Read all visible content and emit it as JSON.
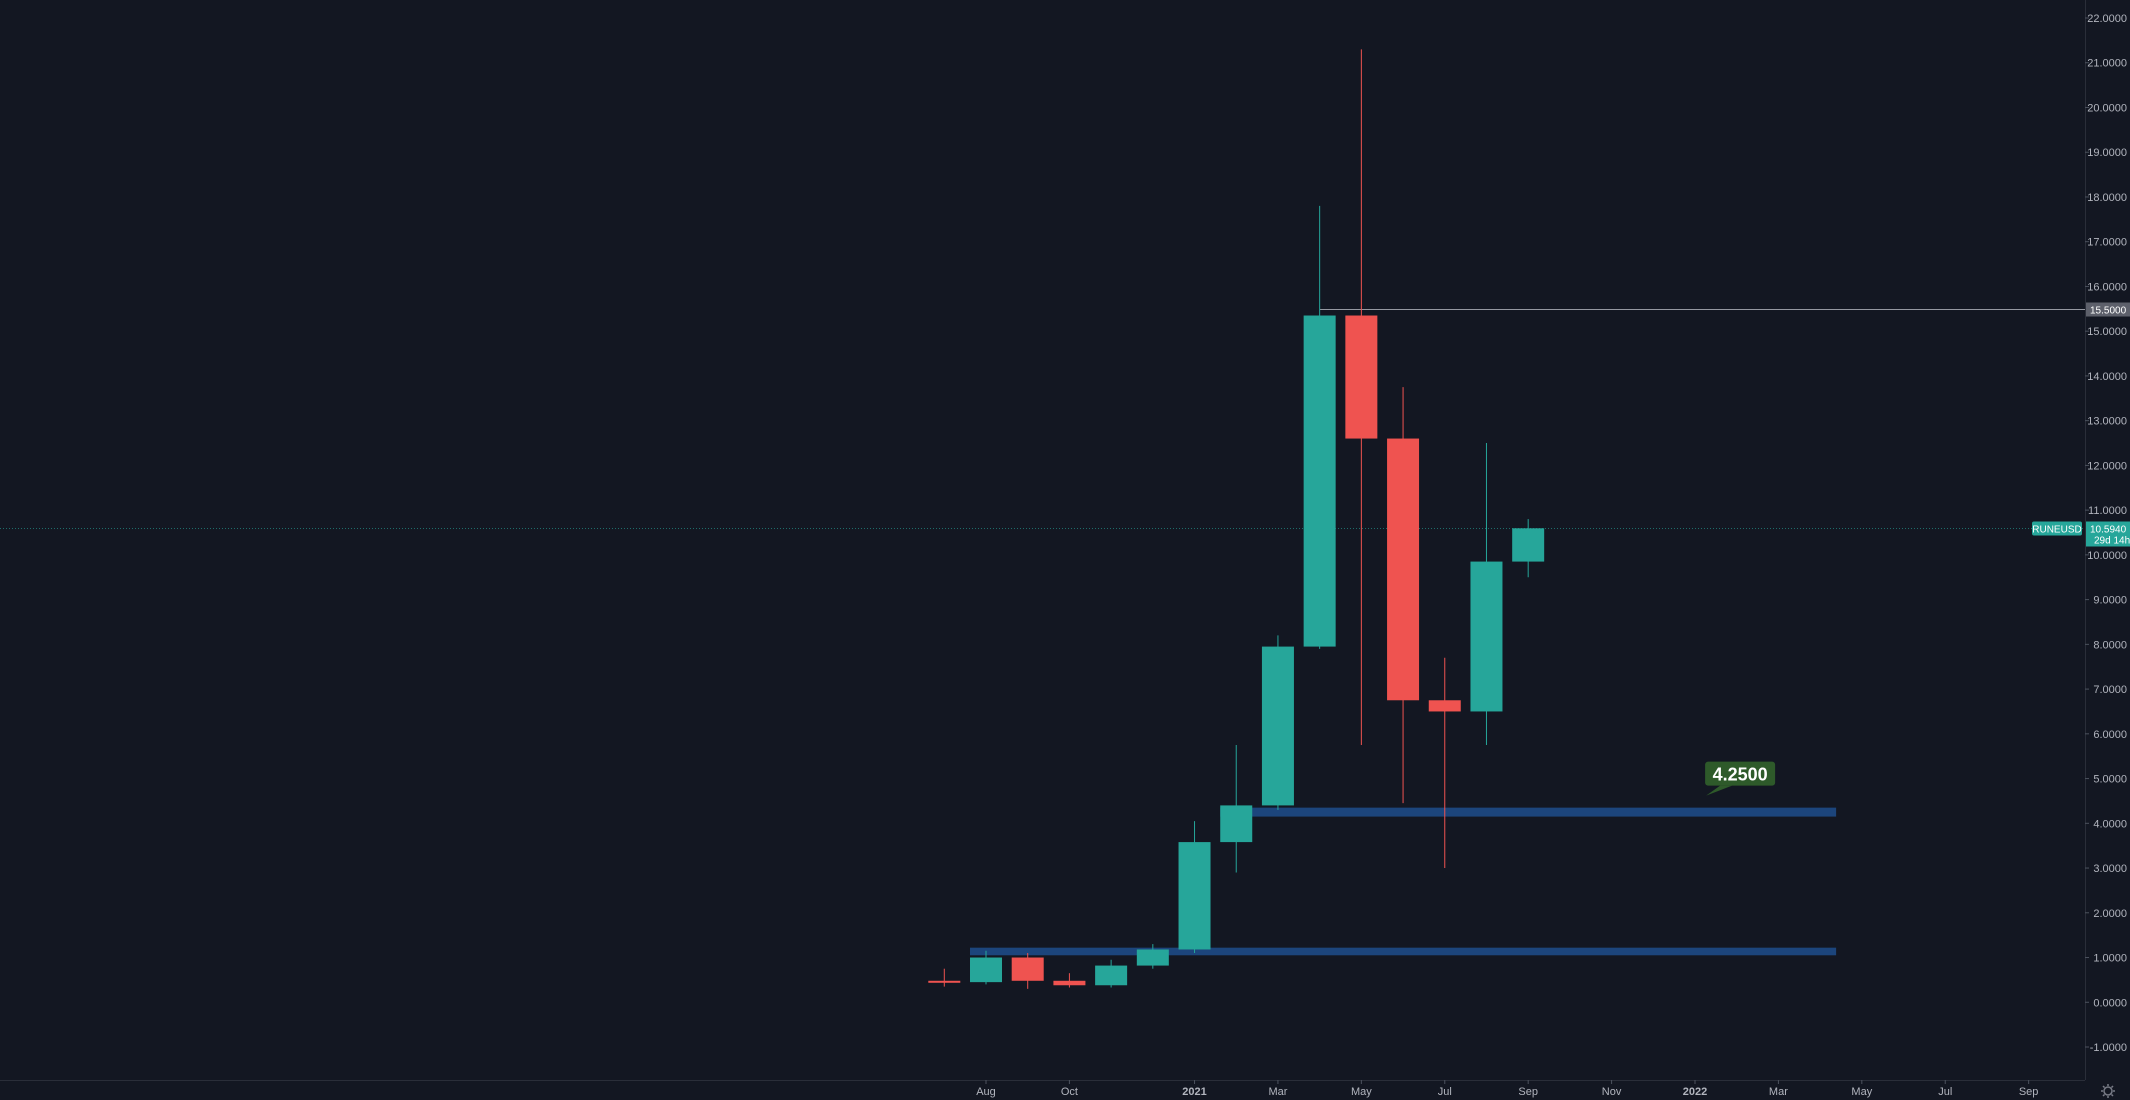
{
  "chart_data": {
    "type": "candlestick",
    "symbol": "RUNEUSD",
    "last_price": "10.5940",
    "countdown": "29d 14h",
    "ref_line_label": "15.5000",
    "ref_line_value": 15.5,
    "ylim": [
      -1.5,
      22.3
    ],
    "y_ticks": [
      "22.0000",
      "21.0000",
      "20.0000",
      "19.0000",
      "18.0000",
      "17.0000",
      "16.0000",
      "15.0000",
      "14.0000",
      "13.0000",
      "12.0000",
      "11.0000",
      "10.0000",
      "9.0000",
      "8.0000",
      "7.0000",
      "6.0000",
      "5.0000",
      "4.0000",
      "3.0000",
      "2.0000",
      "1.0000",
      "0.0000",
      "-1.0000"
    ],
    "x_range": [
      "2020-06",
      "2022-10"
    ],
    "x_ticks": [
      {
        "label": "Aug",
        "date": "2020-08",
        "major": false
      },
      {
        "label": "Oct",
        "date": "2020-10",
        "major": false
      },
      {
        "label": "2021",
        "date": "2021-01",
        "major": true
      },
      {
        "label": "Mar",
        "date": "2021-03",
        "major": false
      },
      {
        "label": "May",
        "date": "2021-05",
        "major": false
      },
      {
        "label": "Jul",
        "date": "2021-07",
        "major": false
      },
      {
        "label": "Sep",
        "date": "2021-09",
        "major": false
      },
      {
        "label": "Nov",
        "date": "2021-11",
        "major": false
      },
      {
        "label": "2022",
        "date": "2022-01",
        "major": true
      },
      {
        "label": "Mar",
        "date": "2022-03",
        "major": false
      },
      {
        "label": "May",
        "date": "2022-05",
        "major": false
      },
      {
        "label": "Jul",
        "date": "2022-07",
        "major": false
      },
      {
        "label": "Sep",
        "date": "2022-09",
        "major": false
      }
    ],
    "candles": [
      {
        "date": "2020-07",
        "open": 0.48,
        "high": 0.75,
        "low": 0.35,
        "close": 0.45
      },
      {
        "date": "2020-08",
        "open": 0.45,
        "high": 1.15,
        "low": 0.4,
        "close": 1.0
      },
      {
        "date": "2020-09",
        "open": 1.0,
        "high": 1.1,
        "low": 0.3,
        "close": 0.48
      },
      {
        "date": "2020-10",
        "open": 0.48,
        "high": 0.65,
        "low": 0.33,
        "close": 0.38
      },
      {
        "date": "2020-11",
        "open": 0.38,
        "high": 0.95,
        "low": 0.33,
        "close": 0.82
      },
      {
        "date": "2020-12",
        "open": 0.82,
        "high": 1.3,
        "low": 0.75,
        "close": 1.18
      },
      {
        "date": "2021-01",
        "open": 1.18,
        "high": 4.05,
        "low": 1.1,
        "close": 3.58
      },
      {
        "date": "2021-02",
        "open": 3.58,
        "high": 5.75,
        "low": 2.9,
        "close": 4.4
      },
      {
        "date": "2021-03",
        "open": 4.4,
        "high": 8.2,
        "low": 4.3,
        "close": 7.95
      },
      {
        "date": "2021-04",
        "open": 7.95,
        "high": 17.8,
        "low": 7.9,
        "close": 15.35
      },
      {
        "date": "2021-05",
        "open": 15.35,
        "high": 21.3,
        "low": 5.75,
        "close": 12.6
      },
      {
        "date": "2021-06",
        "open": 12.6,
        "high": 13.75,
        "low": 4.45,
        "close": 6.75
      },
      {
        "date": "2021-07",
        "open": 6.75,
        "high": 7.7,
        "low": 3.0,
        "close": 6.5
      },
      {
        "date": "2021-08",
        "open": 6.5,
        "high": 12.5,
        "low": 5.75,
        "close": 9.85
      },
      {
        "date": "2021-09",
        "open": 9.85,
        "high": 10.8,
        "low": 9.5,
        "close": 10.594
      }
    ],
    "zones": [
      {
        "from": "2021-02",
        "to": "2022-04",
        "low": 4.15,
        "high": 4.35,
        "annotation": "4.2500"
      },
      {
        "from": "2020-08",
        "to": "2022-04",
        "low": 1.05,
        "high": 1.22
      }
    ],
    "colors": {
      "up": "#26a69a",
      "down": "#ef5350",
      "background": "#131722",
      "zone": "#1e4d8c",
      "annotation_bg": "#2e5a2a",
      "ref_line": "#9598a1"
    }
  }
}
